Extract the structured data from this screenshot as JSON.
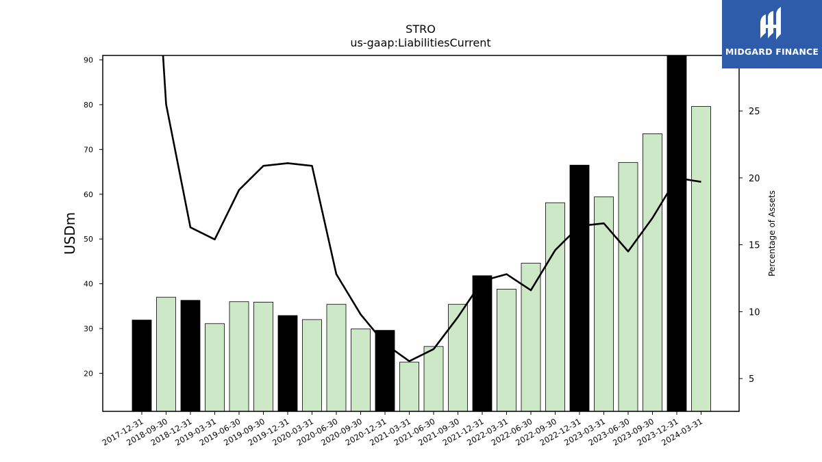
{
  "chart_data": {
    "type": "bar",
    "title": "STRO",
    "subtitle": "us-gaap:LiabilitiesCurrent",
    "ylabel": "USDm",
    "y2label": "Percentage of Assets",
    "ylim": [
      11.5,
      91
    ],
    "y2lim": [
      2.55,
      29.15
    ],
    "yticks": [
      20,
      30,
      40,
      50,
      60,
      70,
      80,
      90
    ],
    "y2ticks": [
      5,
      10,
      15,
      20,
      25
    ],
    "categories": [
      "2017-12-31",
      "2018-09-30",
      "2018-12-31",
      "2019-03-31",
      "2019-06-30",
      "2019-09-30",
      "2019-12-31",
      "2020-03-31",
      "2020-06-30",
      "2020-09-30",
      "2020-12-31",
      "2021-03-31",
      "2021-06-30",
      "2021-09-30",
      "2021-12-31",
      "2022-03-31",
      "2022-06-30",
      "2022-09-30",
      "2022-12-31",
      "2023-03-31",
      "2023-06-30",
      "2023-09-30",
      "2023-12-31",
      "2024-03-31"
    ],
    "series": [
      {
        "kind": "bar",
        "values": [
          31.9,
          37.0,
          36.3,
          31.1,
          36.0,
          35.9,
          32.9,
          32.0,
          35.4,
          29.9,
          29.6,
          22.5,
          26.0,
          35.4,
          41.8,
          38.8,
          44.6,
          58.1,
          66.5,
          59.4,
          67.1,
          73.5,
          91.0,
          79.6
        ],
        "year_end": [
          true,
          false,
          true,
          false,
          false,
          false,
          true,
          false,
          false,
          false,
          true,
          false,
          false,
          false,
          true,
          false,
          false,
          false,
          true,
          false,
          false,
          false,
          true,
          false
        ]
      },
      {
        "kind": "line",
        "axis": "right",
        "values": [
          null,
          25.5,
          16.3,
          15.4,
          19.1,
          20.9,
          21.1,
          20.9,
          12.8,
          9.8,
          7.6,
          6.3,
          7.2,
          9.6,
          12.3,
          12.8,
          11.6,
          14.6,
          16.4,
          16.6,
          14.5,
          17.0,
          20.0,
          19.7
        ],
        "offscale_start": true
      }
    ],
    "colors": {
      "year_end_bar": "#000000",
      "bar": "#cce8c6",
      "line": "#000000"
    },
    "grid": false,
    "legend": "none"
  },
  "logo": {
    "text": "MIDGARD FINANCE",
    "background": "#2f5caa"
  }
}
